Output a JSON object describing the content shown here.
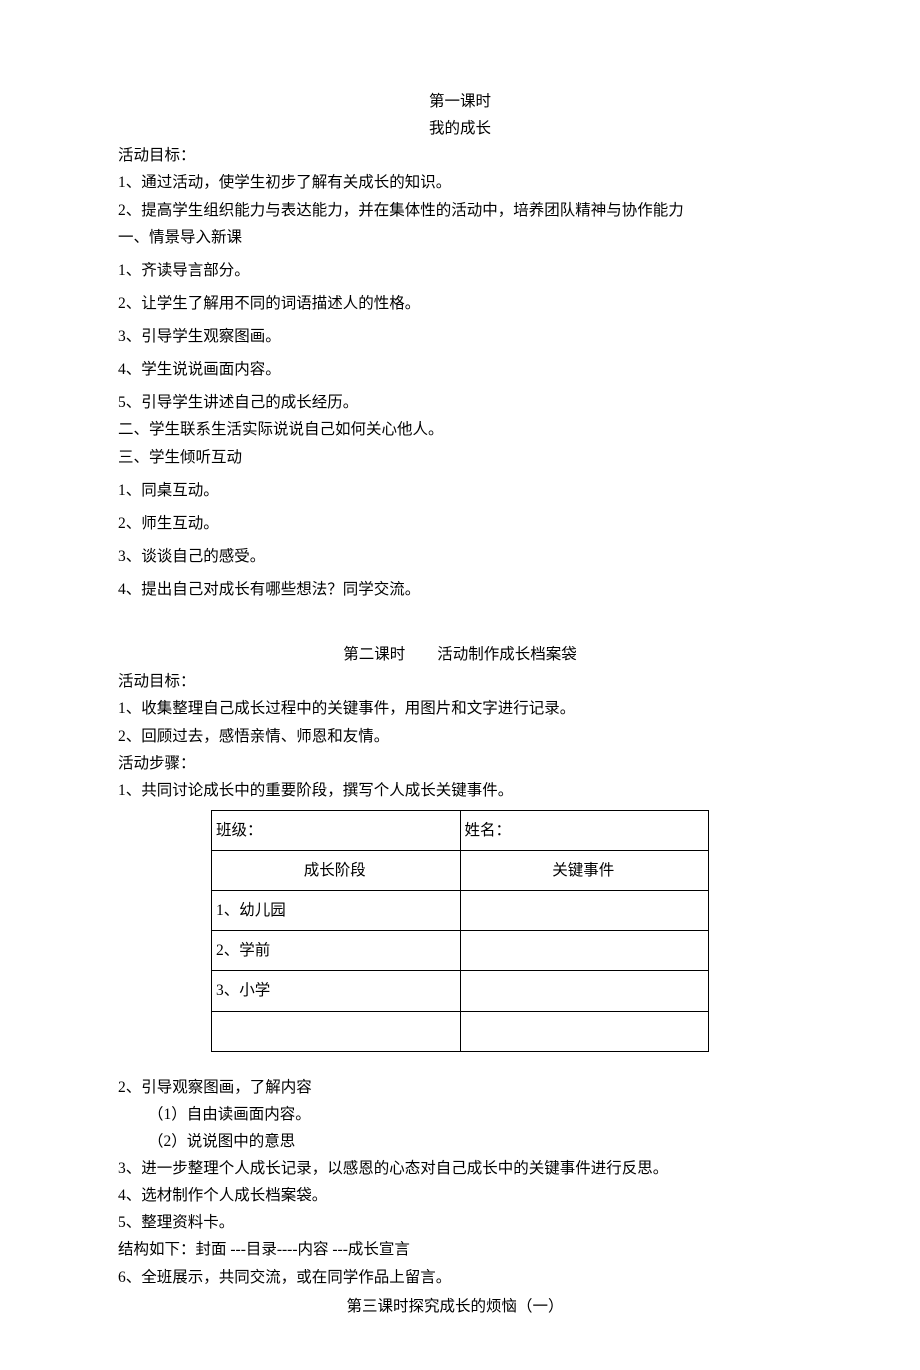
{
  "lesson1": {
    "title1": "第一课时",
    "title2": "我的成长",
    "goals_label": "活动目标：",
    "goal1": "1、通过活动，使学生初步了解有关成长的知识。",
    "goal2": "2、提高学生组织能力与表达能力，并在集体性的活动中，培养团队精神与协作能力",
    "sec1": "一、情景导入新课",
    "s1_1": "1、齐读导言部分。",
    "s1_2": "2、让学生了解用不同的词语描述人的性格。",
    "s1_3": "3、引导学生观察图画。",
    "s1_4": "4、学生说说画面内容。",
    "s1_5": "5、引导学生讲述自己的成长经历。",
    "sec2": "二、学生联系生活实际说说自己如何关心他人。",
    "sec3": "三、学生倾听互动",
    "s3_1": "1、同桌互动。",
    "s3_2": "2、师生互动。",
    "s3_3": "3、谈谈自己的感受。",
    "s3_4": "4、提出自己对成长有哪些想法？同学交流。"
  },
  "lesson2": {
    "title_left": "第二课时",
    "title_right": "活动制作成长档案袋",
    "goals_label": "活动目标：",
    "goal1": "1、收集整理自己成长过程中的关键事件，用图片和文字进行记录。",
    "goal2": "2、回顾过去，感悟亲情、师恩和友情。",
    "steps_label": "活动步骤：",
    "step1": "1、共同讨论成长中的重要阶段，撰写个人成长关键事件。",
    "table": {
      "class_label": "班级：",
      "name_label": "姓名：",
      "col1": "成长阶段",
      "col2": "关键事件",
      "r1": "1、幼儿园",
      "r2": "2、学前",
      "r3": "3、小学"
    },
    "step2": "2、引导观察图画，了解内容",
    "step2_1": "（1）自由读画面内容。",
    "step2_2": "（2）说说图中的意思",
    "step3": "3、进一步整理个人成长记录，以感恩的心态对自己成长中的关键事件进行反思。",
    "step4": "4、选材制作个人成长档案袋。",
    "step5": "5、整理资料卡。",
    "structure": "结构如下：封面 ---目录----内容 ---成长宣言",
    "step6": "6、全班展示，共同交流，或在同学作品上留言。"
  },
  "lesson3": {
    "title": "第三课时探究成长的烦恼（一）"
  }
}
